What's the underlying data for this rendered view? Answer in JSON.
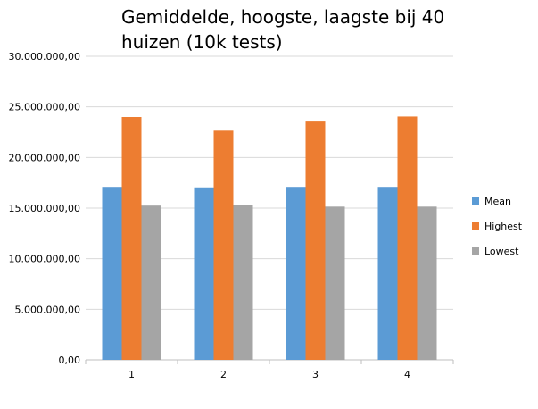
{
  "chart_data": {
    "type": "bar",
    "title": "Gemiddelde, hoogste, laagste bij 40 huizen (10k tests)",
    "title_lines": [
      "Gemiddelde, hoogste, laagste bij 40",
      "huizen (10k tests)"
    ],
    "categories": [
      "1",
      "2",
      "3",
      "4"
    ],
    "series": [
      {
        "name": "Mean",
        "color": "#5b9bd5",
        "values": [
          17100000,
          17050000,
          17100000,
          17100000
        ]
      },
      {
        "name": "Highest",
        "color": "#ed7d31",
        "values": [
          24000000,
          22650000,
          23550000,
          24050000
        ]
      },
      {
        "name": "Lowest",
        "color": "#a5a5a5",
        "values": [
          15250000,
          15300000,
          15150000,
          15150000
        ]
      }
    ],
    "ylim": [
      0,
      30000000
    ],
    "yticks": [
      0,
      5000000,
      10000000,
      15000000,
      20000000,
      25000000,
      30000000
    ],
    "ytick_labels": [
      "0,00",
      "5.000.000,00",
      "10.000.000,00",
      "15.000.000,00",
      "20.000.000,00",
      "25.000.000,00",
      "30.000.000,00"
    ],
    "xlabel": "",
    "ylabel": "",
    "grid": true,
    "legend_position": "right"
  }
}
